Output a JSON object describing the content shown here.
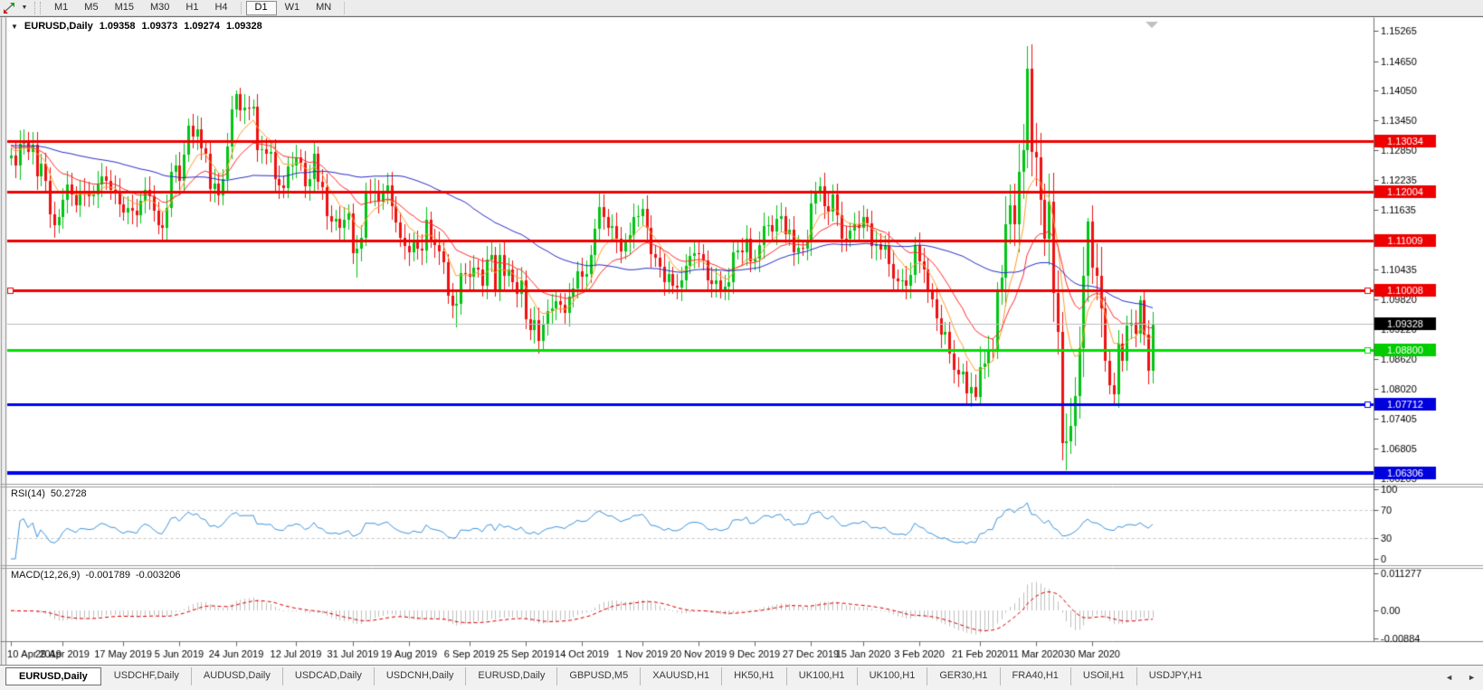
{
  "toolbar": {
    "icon": "symbols-chart-icon",
    "active": "D1",
    "timeframes": [
      {
        "label": "M1"
      },
      {
        "label": "M5"
      },
      {
        "label": "M15"
      },
      {
        "label": "M30"
      },
      {
        "label": "H1"
      },
      {
        "label": "H4",
        "sep_after": true
      },
      {
        "label": "D1"
      },
      {
        "label": "W1"
      },
      {
        "label": "MN",
        "sep_after": true
      }
    ]
  },
  "title": {
    "symbol": "EURUSD,Daily",
    "open": "1.09358",
    "high": "1.09373",
    "low": "1.09274",
    "close": "1.09328"
  },
  "rsi_panel": {
    "label": "RSI(14)",
    "value": "50.2728"
  },
  "macd_panel": {
    "label": "MACD(12,26,9)",
    "main": "-0.001789",
    "signal": "-0.003206"
  },
  "tabs": [
    {
      "label": "EURUSD,Daily",
      "active": true
    },
    {
      "label": "USDCHF,Daily"
    },
    {
      "label": "AUDUSD,Daily"
    },
    {
      "label": "USDCAD,Daily"
    },
    {
      "label": "USDCNH,Daily"
    },
    {
      "label": "EURUSD,Daily"
    },
    {
      "label": "GBPUSD,M5"
    },
    {
      "label": "XAUUSD,H1"
    },
    {
      "label": "HK50,H1"
    },
    {
      "label": "UK100,H1"
    },
    {
      "label": "UK100,H1"
    },
    {
      "label": "GER30,H1"
    },
    {
      "label": "FRA40,H1"
    },
    {
      "label": "USOil,H1"
    },
    {
      "label": "USDJPY,H1"
    }
  ],
  "tab_arrows": {
    "left": "◄",
    "right": "►"
  },
  "chart_data": {
    "type": "candlestick",
    "symbol": "EURUSD",
    "timeframe": "Daily",
    "ohlc_display": {
      "open": "1.09358",
      "high": "1.09373",
      "low": "1.09274",
      "close": "1.09328"
    },
    "y_axis": {
      "min": 1.06205,
      "max": 1.15265,
      "ticks": [
        "1.15265",
        "1.14650",
        "1.14050",
        "1.13450",
        "1.12850",
        "1.12235",
        "1.11635",
        "1.10435",
        "1.09820",
        "1.09220",
        "1.08620",
        "1.08020",
        "1.07405",
        "1.06805",
        "1.06205"
      ]
    },
    "x_axis": {
      "labels": [
        {
          "text": "10 Apr 2019",
          "i": 0
        },
        {
          "text": "29 Apr 2019",
          "i": 12
        },
        {
          "text": "17 May 2019",
          "i": 26
        },
        {
          "text": "5 Jun 2019",
          "i": 39
        },
        {
          "text": "24 Jun 2019",
          "i": 52
        },
        {
          "text": "12 Jul 2019",
          "i": 66
        },
        {
          "text": "31 Jul 2019",
          "i": 79
        },
        {
          "text": "19 Aug 2019",
          "i": 92
        },
        {
          "text": "6 Sep 2019",
          "i": 106
        },
        {
          "text": "25 Sep 2019",
          "i": 119
        },
        {
          "text": "14 Oct 2019",
          "i": 132
        },
        {
          "text": "1 Nov 2019",
          "i": 146
        },
        {
          "text": "20 Nov 2019",
          "i": 159
        },
        {
          "text": "9 Dec 2019",
          "i": 172
        },
        {
          "text": "27 Dec 2019",
          "i": 185
        },
        {
          "text": "15 Jan 2020",
          "i": 197
        },
        {
          "text": "3 Feb 2020",
          "i": 210
        },
        {
          "text": "21 Feb 2020",
          "i": 224
        },
        {
          "text": "11 Mar 2020",
          "i": 237
        },
        {
          "text": "30 Mar 2020",
          "i": 250
        }
      ]
    },
    "current_price": 1.09328,
    "current_price_line_color": "#bdbdbd",
    "candle_colors": {
      "up": "#00c414",
      "down": "#ee1111"
    },
    "horizontal_lines": [
      {
        "price": 1.13034,
        "color": "#ee0000",
        "width": 3,
        "handles": []
      },
      {
        "price": 1.12004,
        "color": "#ee0000",
        "width": 3,
        "handles": []
      },
      {
        "price": 1.11009,
        "color": "#ee0000",
        "width": 3,
        "handles": []
      },
      {
        "price": 1.10008,
        "color": "#ee0000",
        "width": 3,
        "handles": [
          "left",
          "right"
        ]
      },
      {
        "price": 1.088,
        "color": "#00dd00",
        "width": 3,
        "handles": [
          "right"
        ]
      },
      {
        "price": 1.07712,
        "color": "#0000ee",
        "width": 3,
        "handles": [
          "right"
        ]
      },
      {
        "price": 1.06306,
        "color": "#0000ee",
        "width": 4,
        "handles": []
      }
    ],
    "price_badges": [
      {
        "label": "1.13034",
        "price": 1.13034,
        "bg": "#ee0000",
        "fg": "#ffffff"
      },
      {
        "label": "1.12004",
        "price": 1.12004,
        "bg": "#ee0000",
        "fg": "#ffffff"
      },
      {
        "label": "1.11009",
        "price": 1.11009,
        "bg": "#ee0000",
        "fg": "#ffffff"
      },
      {
        "label": "1.10008",
        "price": 1.10008,
        "bg": "#ee0000",
        "fg": "#ffffff"
      },
      {
        "label": "1.09328",
        "price": 1.09328,
        "bg": "#000000",
        "fg": "#ffffff"
      },
      {
        "label": "1.08800",
        "price": 1.088,
        "bg": "#00cc00",
        "fg": "#ffffff"
      },
      {
        "label": "1.07712",
        "price": 1.07712,
        "bg": "#0000dd",
        "fg": "#ffffff"
      },
      {
        "label": "1.06306",
        "price": 1.06306,
        "bg": "#0000dd",
        "fg": "#ffffff"
      }
    ],
    "moving_averages": [
      {
        "type": "ema",
        "period": 8,
        "color": "#ff9d2b"
      },
      {
        "type": "ema",
        "period": 20,
        "color": "#ff2d2d"
      },
      {
        "type": "sma",
        "period": 55,
        "color": "#2a2ec9"
      }
    ],
    "rsi": {
      "period": 14,
      "display": "50.2728",
      "levels": [
        70,
        30
      ],
      "axis": [
        "100",
        "70",
        "30",
        "0"
      ],
      "color": "#3f95dd",
      "level_color": "#c4c4c4"
    },
    "macd": {
      "fast": 12,
      "slow": 26,
      "signal": 9,
      "display_main": "-0.001789",
      "display_signal": "-0.003206",
      "axis": [
        "0.011277",
        "0.00",
        "-0.00884"
      ],
      "histogram_color": "#c0c0c0",
      "signal_color": "#dd0000"
    },
    "first_open": 1.1268,
    "closes": [
      1.1274,
      1.1253,
      1.1298,
      1.1304,
      1.1282,
      1.1295,
      1.1232,
      1.1258,
      1.1223,
      1.1155,
      1.1133,
      1.1149,
      1.1185,
      1.1215,
      1.1195,
      1.1174,
      1.12,
      1.1199,
      1.1192,
      1.1195,
      1.1216,
      1.1232,
      1.1223,
      1.1205,
      1.1202,
      1.1175,
      1.1158,
      1.1168,
      1.1162,
      1.1153,
      1.1182,
      1.1204,
      1.1192,
      1.1162,
      1.1133,
      1.1127,
      1.1168,
      1.124,
      1.1253,
      1.1222,
      1.1276,
      1.1334,
      1.1312,
      1.1327,
      1.1288,
      1.1277,
      1.1207,
      1.1218,
      1.1193,
      1.1226,
      1.1293,
      1.1368,
      1.1399,
      1.1366,
      1.137,
      1.1369,
      1.1373,
      1.1285,
      1.1286,
      1.1278,
      1.1281,
      1.1226,
      1.1213,
      1.1208,
      1.1252,
      1.1254,
      1.127,
      1.1259,
      1.1211,
      1.1227,
      1.1277,
      1.1221,
      1.1209,
      1.1151,
      1.114,
      1.1145,
      1.1128,
      1.1143,
      1.1156,
      1.1076,
      1.1085,
      1.1107,
      1.1202,
      1.12,
      1.12,
      1.1181,
      1.12,
      1.1214,
      1.1171,
      1.1139,
      1.1108,
      1.109,
      1.1078,
      1.11,
      1.1086,
      1.1081,
      1.1144,
      1.1102,
      1.1092,
      1.108,
      1.1057,
      1.099,
      1.097,
      1.0973,
      1.1035,
      1.1034,
      1.1028,
      1.1046,
      1.1044,
      1.1011,
      1.1063,
      1.1073,
      1.1003,
      1.1072,
      1.1031,
      1.1044,
      1.1017,
      1.0993,
      1.1021,
      1.0943,
      1.0921,
      1.094,
      1.0899,
      1.0933,
      1.0959,
      1.0965,
      1.0979,
      1.0971,
      1.0956,
      1.0988,
      1.1004,
      1.104,
      1.1028,
      1.1034,
      1.1073,
      1.1125,
      1.117,
      1.115,
      1.1127,
      1.1131,
      1.1105,
      1.108,
      1.1099,
      1.1113,
      1.115,
      1.1152,
      1.1166,
      1.1127,
      1.1074,
      1.1067,
      1.1049,
      1.1018,
      1.1034,
      1.101,
      1.1007,
      1.1021,
      1.1051,
      1.1071,
      1.1077,
      1.1074,
      1.1061,
      1.1021,
      1.1013,
      1.1021,
      1.1003,
      1.1009,
      1.1018,
      1.1078,
      1.1082,
      1.1078,
      1.1105,
      1.106,
      1.1065,
      1.1093,
      1.1131,
      1.1132,
      1.112,
      1.1145,
      1.1152,
      1.1114,
      1.1123,
      1.1078,
      1.1088,
      1.1086,
      1.1098,
      1.1177,
      1.1199,
      1.1212,
      1.1172,
      1.116,
      1.1196,
      1.1153,
      1.1106,
      1.1105,
      1.1122,
      1.1134,
      1.1128,
      1.115,
      1.1136,
      1.109,
      1.1095,
      1.1084,
      1.1093,
      1.1055,
      1.1024,
      1.1019,
      1.1022,
      1.101,
      1.1032,
      1.1093,
      1.106,
      1.1044,
      1.0999,
      1.0983,
      1.0945,
      1.0911,
      1.0917,
      1.0873,
      1.084,
      1.0831,
      1.0836,
      1.0792,
      1.0806,
      1.0785,
      1.0846,
      1.0853,
      1.0881,
      1.088,
      1.0999,
      1.1026,
      1.1135,
      1.1173,
      1.1135,
      1.124,
      1.1284,
      1.145,
      1.1281,
      1.127,
      1.1184,
      1.1105,
      1.118,
      1.0995,
      1.0917,
      1.0692,
      1.0695,
      1.0726,
      1.0786,
      1.0883,
      1.103,
      1.114,
      1.1047,
      1.1031,
      1.0964,
      1.0859,
      1.0808,
      1.079,
      1.0893,
      1.0858,
      1.093,
      1.0935,
      1.0913,
      1.098,
      1.0912,
      1.0838,
      1.0933
    ],
    "wick_overrides": {
      "high": {
        "41": 1.1348,
        "52": 1.1405,
        "53": 1.1412,
        "224": 1.0888,
        "235": 1.1495,
        "240": 1.1237,
        "249": 1.1147,
        "261": 1.099
      },
      "low": {
        "80": 1.1027,
        "103": 1.0926,
        "123": 1.0879,
        "166": 1.0981,
        "223": 1.0778,
        "243": 1.0656,
        "244": 1.0636,
        "245": 1.067,
        "255": 1.0769
      }
    }
  }
}
